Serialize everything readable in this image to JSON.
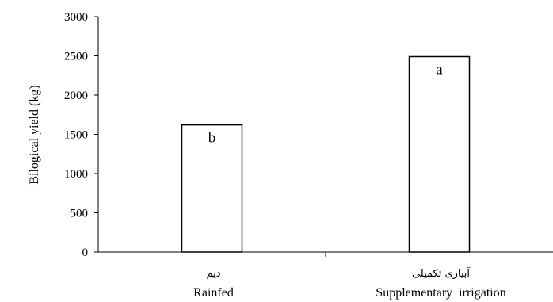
{
  "chart_data": {
    "type": "bar",
    "title": "",
    "xlabel": "",
    "ylabel": "Bilogical yield (kg)",
    "ylim": [
      0,
      3000
    ],
    "yticks": [
      0,
      500,
      1000,
      1500,
      2000,
      2500,
      3000
    ],
    "grid": false,
    "categories": [
      {
        "label_fa": "دیم",
        "label_en": "Rainfed"
      },
      {
        "label_fa": "آبیاری تکمیلی",
        "label_en": "Supplementary  irrigation"
      }
    ],
    "values": [
      1620,
      2490
    ],
    "bar_labels": [
      "b",
      "a"
    ],
    "colors": {
      "bar_fill": "#ffffff",
      "bar_stroke": "#000000",
      "axis": "#000000"
    }
  }
}
